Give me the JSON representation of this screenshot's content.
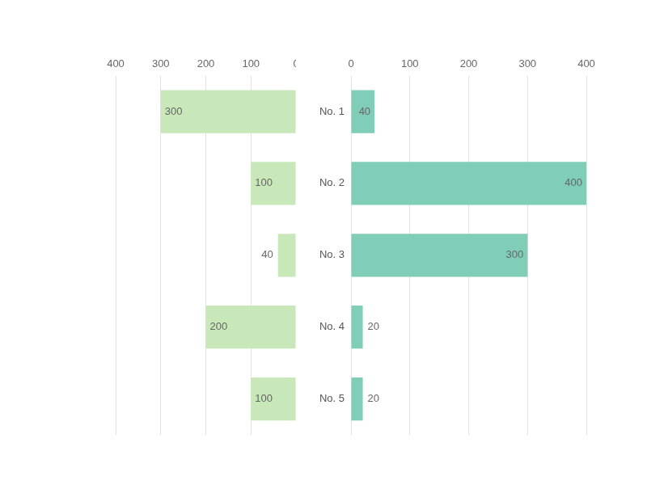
{
  "chart_data": {
    "type": "bar",
    "orientation": "horizontal",
    "categories": [
      "No. 1",
      "No. 2",
      "No. 3",
      "No. 4",
      "No. 5"
    ],
    "series": [
      {
        "color": "#c9e8b9",
        "values": [
          300,
          100,
          40,
          200,
          100
        ]
      },
      {
        "color": "#80cdb8",
        "values": [
          40,
          400,
          300,
          20,
          20
        ]
      }
    ],
    "xlim": [
      0,
      400
    ],
    "xticks": [
      0,
      100,
      200,
      300,
      400
    ],
    "grid": true,
    "data_labels": true
  }
}
